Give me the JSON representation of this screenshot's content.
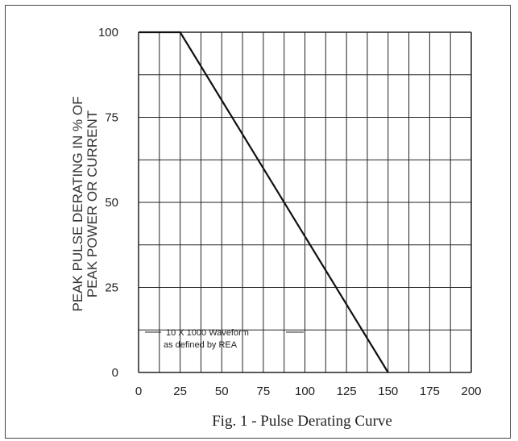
{
  "chart_data": {
    "type": "line",
    "title": "Fig. 1 - Pulse Derating Curve",
    "xlabel": "",
    "ylabel": [
      "PEAK PULSE DERATING IN % OF",
      "PEAK POWER OR CURRENT"
    ],
    "xlim": [
      0,
      200
    ],
    "ylim": [
      0,
      100
    ],
    "xticks": [
      "0",
      "25",
      "50",
      "75",
      "100",
      "125",
      "150",
      "175",
      "200"
    ],
    "yticks": [
      "0",
      "25",
      "50",
      "75",
      "100"
    ],
    "grid": true,
    "legend": "none",
    "annotation": [
      "10 X 1000 Waveform",
      "as defined by REA"
    ],
    "series": [
      {
        "x": [
          0,
          25,
          150
        ],
        "y": [
          100,
          100,
          0
        ]
      }
    ],
    "colors": {
      "line": "#111111",
      "grid": "#222222",
      "text": "#222222"
    }
  }
}
